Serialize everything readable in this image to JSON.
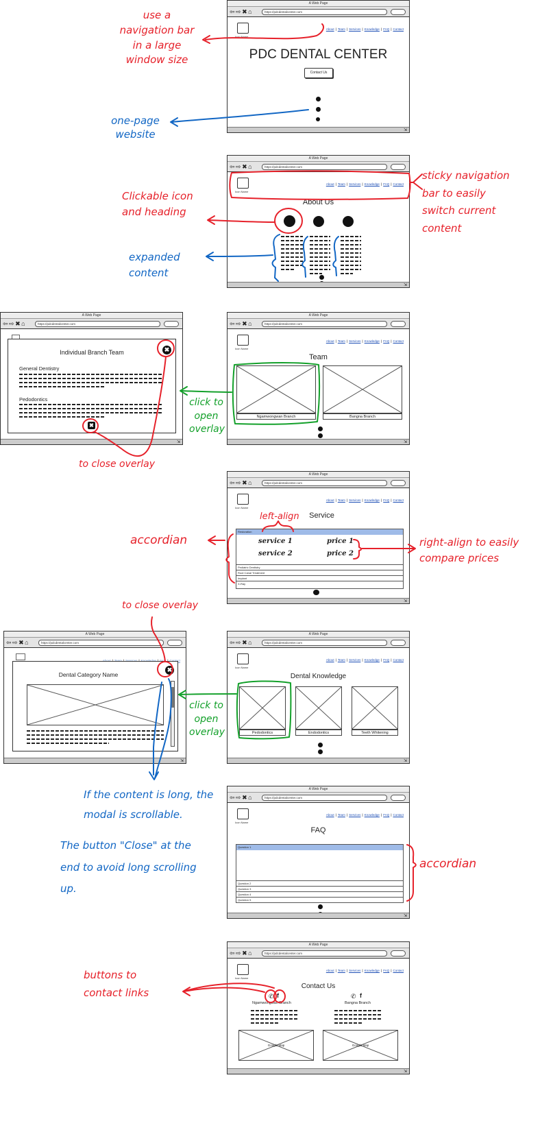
{
  "browser": {
    "title": "A Web Page",
    "url": "https://pdcdentalcenter.com",
    "toolbar_glyphs": "⇦ ⇨ ✖ ⌂"
  },
  "site": {
    "logo_label": "Icon Name",
    "nav": [
      "About",
      "Team",
      "Services",
      "Knowledge",
      "FAQ",
      "Contact"
    ],
    "hero_title": "PDC DENTAL CENTER",
    "hero_button": "Contact Us"
  },
  "sections": {
    "about": "About Us",
    "team": "Team",
    "team_cards": [
      "Ngamwongwan Branch",
      "Bangna Branch"
    ],
    "team_overlay_title": "Individual Branch Team",
    "team_overlay_headings": [
      "General Dentistry",
      "Pedodontics"
    ],
    "service": "Service",
    "service_rows": [
      "Restoration",
      "Pediatric Dentistry",
      "Root Canal Treatment",
      "Implant",
      "X-Ray"
    ],
    "service_items": [
      "service 1",
      "service 2"
    ],
    "service_prices": [
      "price 1",
      "price 2"
    ],
    "knowledge": "Dental Knowledge",
    "knowledge_cards": [
      "Pedodontics",
      "Endodontics",
      "Teeth Whitening"
    ],
    "knowledge_overlay_title": "Dental Category Name",
    "faq": "FAQ",
    "faq_rows": [
      "Question 1",
      "Question 2",
      "Question 3",
      "Question 4",
      "Question 5"
    ],
    "contact": "Contact Us",
    "contact_branches": [
      "Ngamwongwan Branch",
      "Bangna Branch"
    ],
    "map_label": "Google Map"
  },
  "annotations": {
    "nav_large": "use a navigation bar in a large window size",
    "one_page": "one-page website",
    "sticky": "sticky navigation bar to easily switch current content",
    "clickable": "Clickable icon and heading",
    "expanded": "expanded content",
    "click_overlay": "click to open overlay",
    "close_overlay_1": "to close overlay",
    "left_align": "left-align",
    "accordian": "accordian",
    "right_align": "right-align to easily compare prices",
    "close_overlay_2": "to close overlay",
    "scroll_note": "If the content is long, the modal is scrollable.",
    "close_note": "The button \"Close\" at the end to avoid long scrolling up.",
    "contact_buttons": "buttons to contact links"
  },
  "colors": {
    "annotation_red": "#e6212a",
    "annotation_blue": "#1166c4",
    "annotation_green": "#13a02a",
    "link_blue": "#1e4fb5",
    "accordion_highlight": "#9fbbe8"
  }
}
